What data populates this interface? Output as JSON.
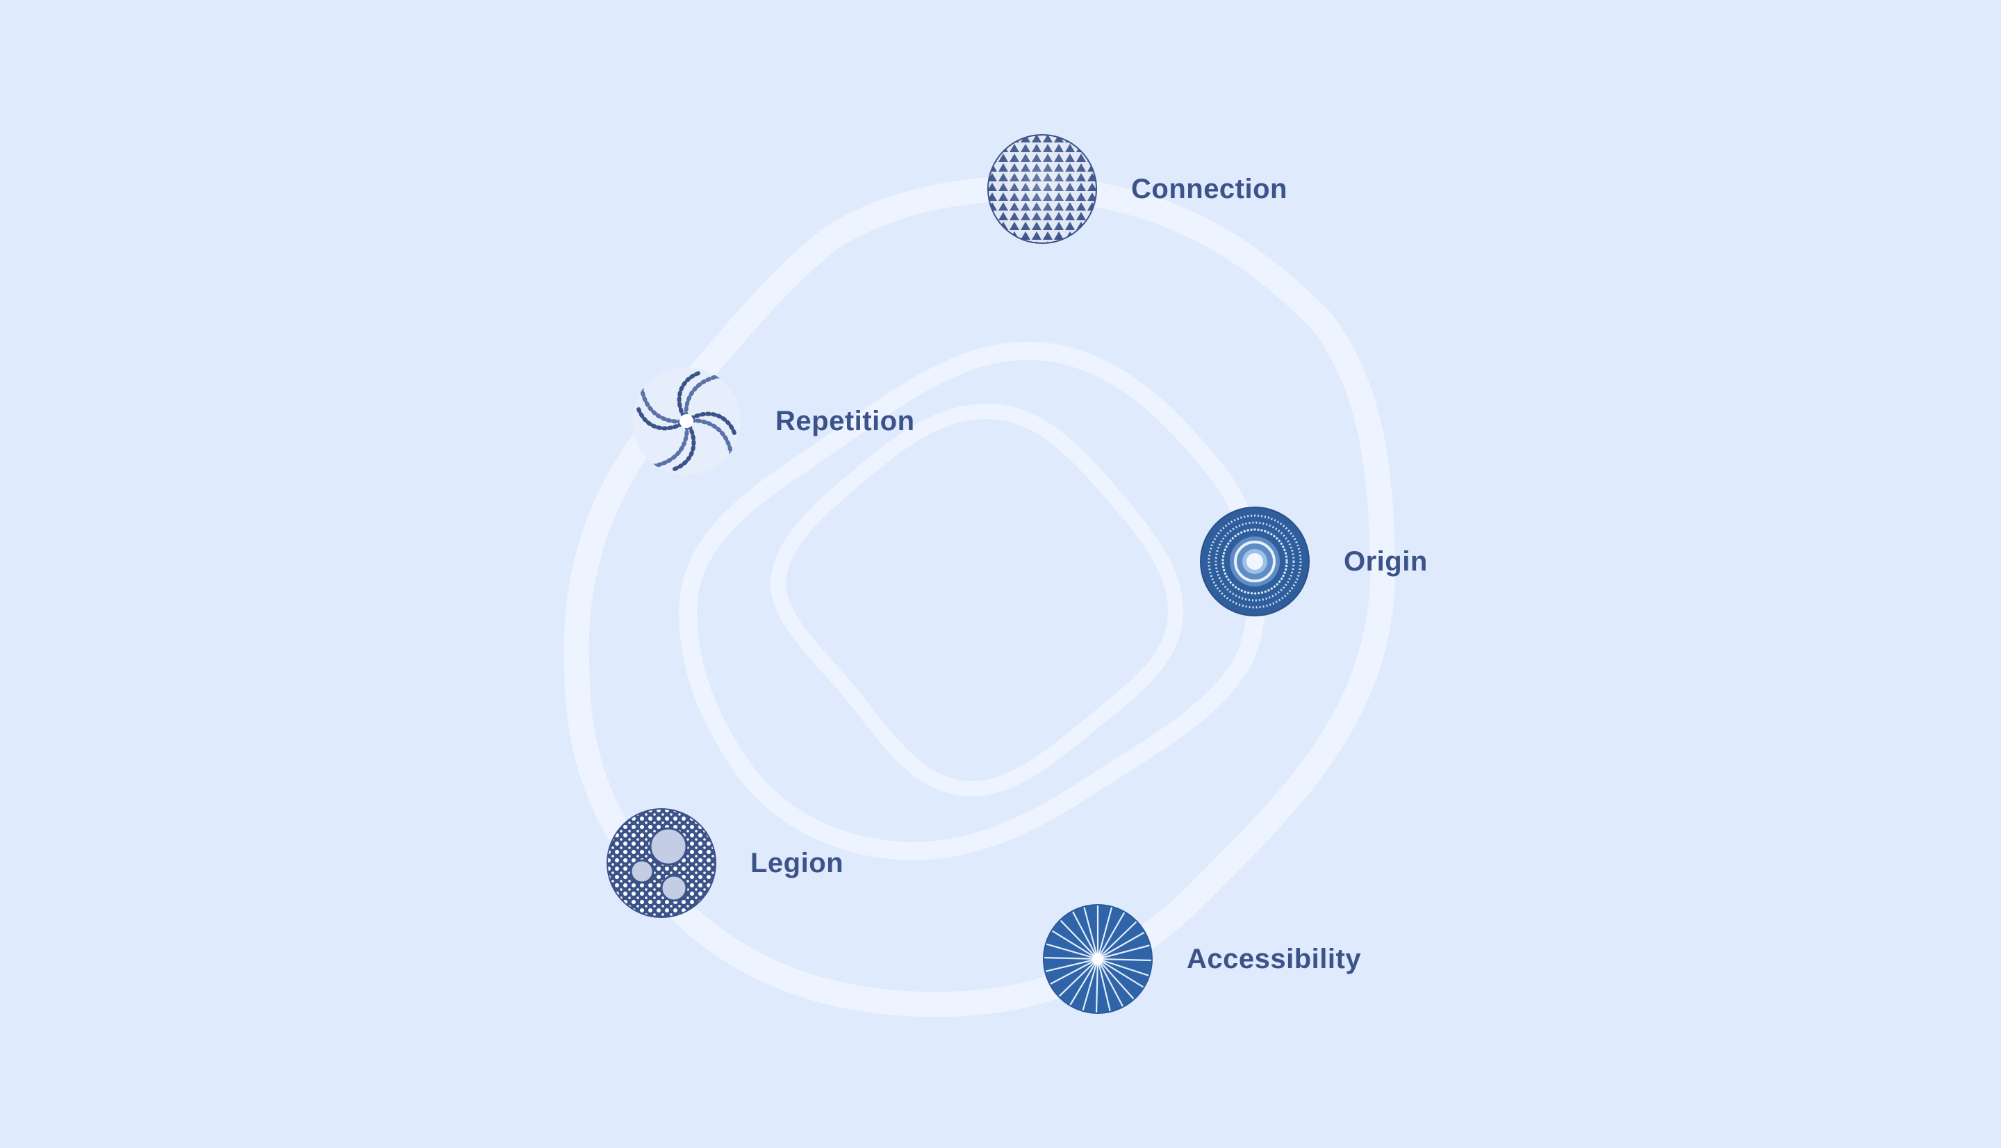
{
  "colors": {
    "background": "#e0eafd",
    "ring": "#eef4ff",
    "label": "#3b5388",
    "emblem_dark": "#3b5388",
    "emblem_blue": "#2f64a8"
  },
  "nodes": [
    {
      "id": "connection",
      "label": "Connection",
      "icon": "geodesic-sphere-icon"
    },
    {
      "id": "repetition",
      "label": "Repetition",
      "icon": "swirl-icon"
    },
    {
      "id": "origin",
      "label": "Origin",
      "icon": "concentric-rings-icon"
    },
    {
      "id": "legion",
      "label": "Legion",
      "icon": "bubbles-icon"
    },
    {
      "id": "accessibility",
      "label": "Accessibility",
      "icon": "radial-burst-icon"
    }
  ]
}
